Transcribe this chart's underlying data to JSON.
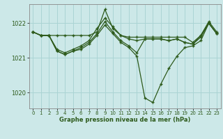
{
  "title": "Graphe pression niveau de la mer (hPa)",
  "bg_color": "#cce8e8",
  "grid_color": "#aad4d4",
  "line_color": "#2d5a1b",
  "marker_color": "#2d5a1b",
  "xlim": [
    -0.5,
    23.5
  ],
  "ylim": [
    1019.55,
    1022.55
  ],
  "yticks": [
    1020,
    1021,
    1022
  ],
  "xticks": [
    0,
    1,
    2,
    3,
    4,
    5,
    6,
    7,
    8,
    9,
    10,
    11,
    12,
    13,
    14,
    15,
    16,
    17,
    18,
    19,
    20,
    21,
    22,
    23
  ],
  "series": [
    [
      1021.75,
      1021.65,
      1021.65,
      1021.65,
      1021.65,
      1021.65,
      1021.65,
      1021.65,
      1021.75,
      1022.4,
      1021.85,
      1021.65,
      1021.6,
      1021.6,
      1021.6,
      1021.6,
      1021.6,
      1021.6,
      1021.6,
      1021.6,
      1021.45,
      1021.65,
      1022.05,
      1021.75
    ],
    [
      1021.75,
      1021.65,
      1021.65,
      1021.25,
      1021.15,
      1021.25,
      1021.35,
      1021.5,
      1021.85,
      1022.15,
      1021.9,
      1021.65,
      1021.55,
      1021.5,
      1021.55,
      1021.55,
      1021.55,
      1021.5,
      1021.55,
      1021.45,
      1021.4,
      1021.65,
      1022.0,
      1021.7
    ],
    [
      1021.75,
      1021.65,
      1021.65,
      1021.2,
      1021.1,
      1021.2,
      1021.3,
      1021.45,
      1021.7,
      1022.05,
      1021.75,
      1021.5,
      1021.35,
      1021.15,
      1021.55,
      1021.55,
      1021.55,
      1021.5,
      1021.55,
      1021.45,
      1021.4,
      1021.6,
      1022.0,
      1021.7
    ],
    [
      1021.75,
      1021.65,
      1021.65,
      1021.2,
      1021.1,
      1021.2,
      1021.25,
      1021.4,
      1021.65,
      1021.95,
      1021.7,
      1021.45,
      1021.3,
      1021.05,
      1019.85,
      1019.72,
      1020.25,
      1020.7,
      1021.05,
      1021.3,
      1021.35,
      1021.5,
      1022.0,
      1021.7
    ]
  ]
}
